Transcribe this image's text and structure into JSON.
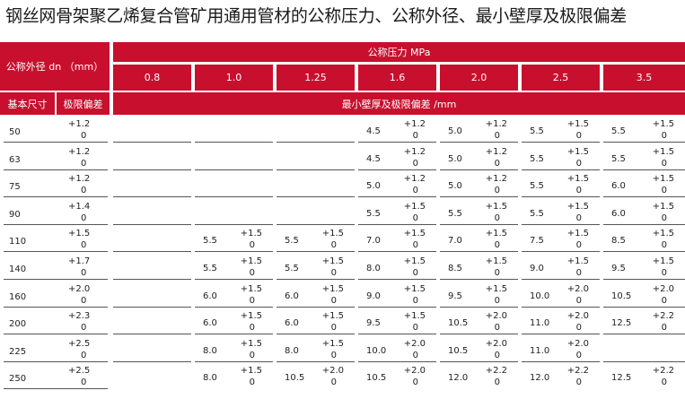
{
  "title": "钢丝网骨架聚乙烯复合管矿用通用管材的公称压力、公称外径、最小壁厚及极限偏差",
  "header": {
    "dn_label": "公称外径 dn （mm）",
    "pressure_label": "公称压力 MPa",
    "pressures": [
      "0.8",
      "1.0",
      "1.25",
      "1.6",
      "2.0",
      "2.5",
      "3.5"
    ],
    "basic_size": "基本尺寸",
    "limit_dev": "极限偏差",
    "wall_label": "最小壁厚及极限偏差 /mm"
  },
  "rows": [
    {
      "dn": "50",
      "tol": [
        "+1.2",
        "0"
      ],
      "cols": [
        null,
        null,
        null,
        [
          "4.5",
          "+1.2",
          "0"
        ],
        [
          "5.0",
          "+1.2",
          "0"
        ],
        [
          "5.5",
          "+1.5",
          "0"
        ],
        [
          "5.5",
          "+1.5",
          "0"
        ]
      ]
    },
    {
      "dn": "63",
      "tol": [
        "+1.2",
        "0"
      ],
      "cols": [
        null,
        null,
        null,
        [
          "4.5",
          "+1.2",
          "0"
        ],
        [
          "5.0",
          "+1.2",
          "0"
        ],
        [
          "5.5",
          "+1.5",
          "0"
        ],
        [
          "5.5",
          "+1.5",
          "0"
        ]
      ]
    },
    {
      "dn": "75",
      "tol": [
        "+1.2",
        "0"
      ],
      "cols": [
        null,
        null,
        null,
        [
          "5.0",
          "+1.2",
          "0"
        ],
        [
          "5.0",
          "+1.2",
          "0"
        ],
        [
          "5.5",
          "+1.5",
          "0"
        ],
        [
          "6.0",
          "+1.5",
          "0"
        ]
      ]
    },
    {
      "dn": "90",
      "tol": [
        "+1.4",
        "0"
      ],
      "cols": [
        null,
        null,
        null,
        [
          "5.5",
          "+1.5",
          "0"
        ],
        [
          "5.5",
          "+1.5",
          "0"
        ],
        [
          "5.5",
          "+1.5",
          "0"
        ],
        [
          "6.0",
          "+1.5",
          "0"
        ]
      ]
    },
    {
      "dn": "110",
      "tol": [
        "+1.5",
        "0"
      ],
      "cols": [
        null,
        [
          "5.5",
          "+1.5",
          "0"
        ],
        [
          "5.5",
          "+1.5",
          "0"
        ],
        [
          "7.0",
          "+1.5",
          "0"
        ],
        [
          "7.0",
          "+1.5",
          "0"
        ],
        [
          "7.5",
          "+1.5",
          "0"
        ],
        [
          "8.5",
          "+1.5",
          "0"
        ]
      ]
    },
    {
      "dn": "140",
      "tol": [
        "+1.7",
        "0"
      ],
      "cols": [
        null,
        [
          "5.5",
          "+1.5",
          "0"
        ],
        [
          "5.5",
          "+1.5",
          "0"
        ],
        [
          "8.0",
          "+1.5",
          "0"
        ],
        [
          "8.5",
          "+1.5",
          "0"
        ],
        [
          "9.0",
          "+1.5",
          "0"
        ],
        [
          "9.5",
          "+1.5",
          "0"
        ]
      ]
    },
    {
      "dn": "160",
      "tol": [
        "+2.0",
        "0"
      ],
      "cols": [
        null,
        [
          "6.0",
          "+1.5",
          "0"
        ],
        [
          "6.0",
          "+1.5",
          "0"
        ],
        [
          "9.0",
          "+1.5",
          "0"
        ],
        [
          "9.5",
          "+1.5",
          "0"
        ],
        [
          "10.0",
          "+2.0",
          "0"
        ],
        [
          "10.5",
          "+2.0",
          "0"
        ]
      ]
    },
    {
      "dn": "200",
      "tol": [
        "+2.3",
        "0"
      ],
      "cols": [
        null,
        [
          "6.0",
          "+1.5",
          "0"
        ],
        [
          "6.0",
          "+1.5",
          "0"
        ],
        [
          "9.5",
          "+1.5",
          "0"
        ],
        [
          "10.5",
          "+2.0",
          "0"
        ],
        [
          "11.0",
          "+2.0",
          "0"
        ],
        [
          "12.5",
          "+2.2",
          "0"
        ]
      ]
    },
    {
      "dn": "225",
      "tol": [
        "+2.5",
        "0"
      ],
      "cols": [
        null,
        [
          "8.0",
          "+1.5",
          "0"
        ],
        [
          "8.0",
          "+1.5",
          "0"
        ],
        [
          "10.0",
          "+2.0",
          "0"
        ],
        [
          "10.5",
          "+2.0",
          "0"
        ],
        [
          "11.0",
          "+2.0",
          "0"
        ],
        null
      ]
    },
    {
      "dn": "250",
      "tol": [
        "+2.5",
        "0"
      ],
      "cols": [
        null,
        [
          "8.0",
          "+1.5",
          "0"
        ],
        [
          "10.5",
          "+2.0",
          "0"
        ],
        [
          "10.5",
          "+2.0",
          "0"
        ],
        [
          "12.0",
          "+2.2",
          "0"
        ],
        [
          "12.0",
          "+2.2",
          "0"
        ],
        [
          "12.5",
          "+2.2",
          "0"
        ]
      ]
    }
  ]
}
